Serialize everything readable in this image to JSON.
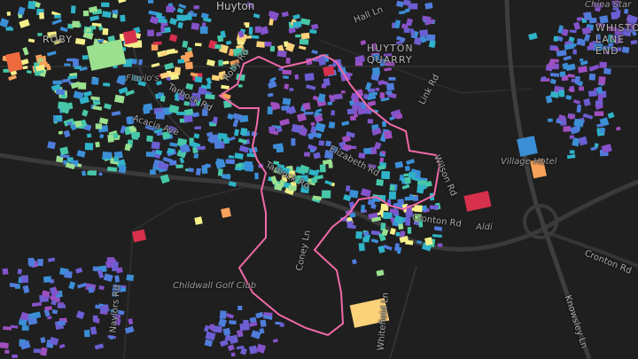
{
  "map": {
    "place_labels": [
      "ROBY",
      "HUYTON QUARRY",
      "WHISTON LANE END"
    ],
    "top_label": "Huyton",
    "street_labels": [
      "Tarbock Rd",
      "Acacia Ave",
      "Roby Rd",
      "Hall Ln",
      "Link Rd",
      "Elizabeth Rd",
      "Wilson Rd",
      "Cronton Rd",
      "Coney Ln",
      "Naylors Rd",
      "Whitefield Ln",
      "Knowsley Ln"
    ],
    "poi_labels": [
      "Flavio's",
      "Childwall Golf Club",
      "Village Hotel",
      "Aldi",
      "China Star"
    ],
    "boundary_color": "#f06aa8",
    "background_color": "#1f1f1f",
    "building_palette": [
      "#3b8fd6",
      "#2fb3c8",
      "#47c7a8",
      "#9be08f",
      "#f5f08a",
      "#fcd27a",
      "#f7a25a",
      "#ee6a3f",
      "#d7304c",
      "#8452c9",
      "#6b5fd3",
      "#4f7ddb",
      "#a04fbf"
    ]
  }
}
